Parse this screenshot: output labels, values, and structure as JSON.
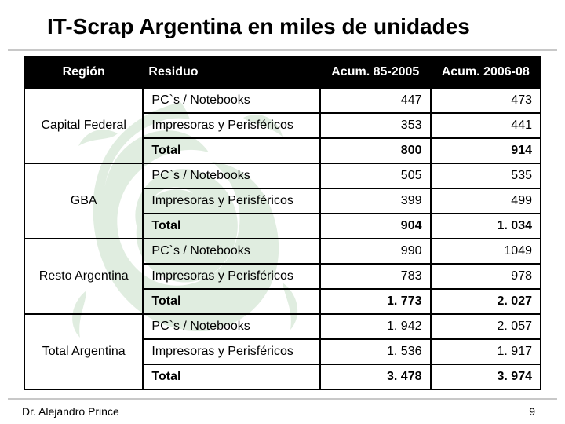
{
  "title": "IT-Scrap Argentina en miles de unidades",
  "table": {
    "headers": {
      "region": "Región",
      "residuo": "Residuo",
      "acum1": "Acum. 85-2005",
      "acum2": "Acum. 2006-08"
    },
    "header_bg": "#000000",
    "header_color": "#ffffff",
    "border_color": "#000000",
    "font_size_body": 16,
    "font_size_header": 16,
    "groups": [
      {
        "region": "Capital Federal",
        "rows": [
          {
            "residuo": "PC`s / Notebooks",
            "a": "447",
            "b": "473",
            "total": false
          },
          {
            "residuo": "Impresoras y Perisféricos",
            "a": "353",
            "b": "441",
            "total": false
          },
          {
            "residuo": "Total",
            "a": "800",
            "b": "914",
            "total": true
          }
        ]
      },
      {
        "region": "GBA",
        "rows": [
          {
            "residuo": "PC`s / Notebooks",
            "a": "505",
            "b": "535",
            "total": false
          },
          {
            "residuo": "Impresoras y Perisféricos",
            "a": "399",
            "b": "499",
            "total": false
          },
          {
            "residuo": "Total",
            "a": "904",
            "b": "1. 034",
            "total": true
          }
        ]
      },
      {
        "region": "Resto Argentina",
        "rows": [
          {
            "residuo": "PC`s / Notebooks",
            "a": "990",
            "b": "1049",
            "total": false
          },
          {
            "residuo": "Impresoras y Perisféricos",
            "a": "783",
            "b": "978",
            "total": false
          },
          {
            "residuo": "Total",
            "a": "1. 773",
            "b": "2. 027",
            "total": true
          }
        ]
      },
      {
        "region": "Total Argentina",
        "rows": [
          {
            "residuo": "PC`s / Notebooks",
            "a": "1. 942",
            "b": "2. 057",
            "total": false
          },
          {
            "residuo": "Impresoras y Perisféricos",
            "a": "1. 536",
            "b": "1. 917",
            "total": false
          },
          {
            "residuo": "Total",
            "a": "3. 478",
            "b": "3. 974",
            "total": true
          }
        ]
      }
    ]
  },
  "footer": {
    "author": "Dr. Alejandro Prince",
    "page": "9"
  },
  "watermark": {
    "color": "#3a8a3a",
    "opacity": 0.15
  }
}
